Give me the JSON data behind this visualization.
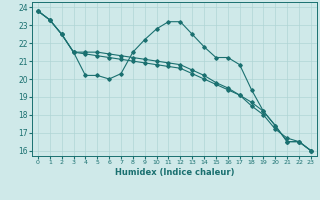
{
  "xlabel": "Humidex (Indice chaleur)",
  "bg_color": "#cfe9e9",
  "grid_color": "#b0d5d5",
  "line_color": "#1a7070",
  "xlim": [
    -0.5,
    23.5
  ],
  "ylim": [
    15.7,
    24.3
  ],
  "yticks": [
    16,
    17,
    18,
    19,
    20,
    21,
    22,
    23,
    24
  ],
  "xticks": [
    0,
    1,
    2,
    3,
    4,
    5,
    6,
    7,
    8,
    9,
    10,
    11,
    12,
    13,
    14,
    15,
    16,
    17,
    18,
    19,
    20,
    21,
    22,
    23
  ],
  "line1_x": [
    0,
    1,
    2,
    3,
    4,
    5,
    6,
    7,
    8,
    9,
    10,
    11,
    12,
    13,
    14,
    15,
    16,
    17,
    18,
    19,
    20,
    21,
    22,
    23
  ],
  "line1_y": [
    23.8,
    23.3,
    22.5,
    21.5,
    20.2,
    20.2,
    20.0,
    20.3,
    21.5,
    22.2,
    22.8,
    23.2,
    23.2,
    22.5,
    21.8,
    21.2,
    21.2,
    20.8,
    19.4,
    18.2,
    17.4,
    16.5,
    16.5,
    16.0
  ],
  "line2_x": [
    0,
    1,
    2,
    3,
    4,
    5,
    6,
    7,
    8,
    9,
    10,
    11,
    12,
    13,
    14,
    15,
    16,
    17,
    18,
    19,
    20,
    21,
    22,
    23
  ],
  "line2_y": [
    23.8,
    23.3,
    22.5,
    21.5,
    21.4,
    21.3,
    21.2,
    21.1,
    21.0,
    20.9,
    20.8,
    20.7,
    20.6,
    20.3,
    20.0,
    19.7,
    19.4,
    19.1,
    18.7,
    18.2,
    17.4,
    16.5,
    16.5,
    16.0
  ],
  "line3_x": [
    0,
    1,
    2,
    3,
    4,
    5,
    6,
    7,
    8,
    9,
    10,
    11,
    12,
    13,
    14,
    15,
    16,
    17,
    18,
    19,
    20,
    21,
    22,
    23
  ],
  "line3_y": [
    23.8,
    23.3,
    22.5,
    21.5,
    21.5,
    21.5,
    21.4,
    21.3,
    21.2,
    21.1,
    21.0,
    20.9,
    20.8,
    20.5,
    20.2,
    19.8,
    19.5,
    19.1,
    18.5,
    18.0,
    17.2,
    16.7,
    16.5,
    16.0
  ]
}
